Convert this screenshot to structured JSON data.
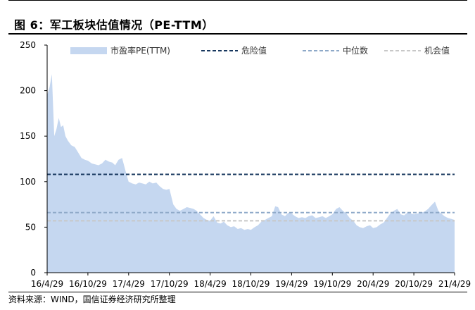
{
  "figure": {
    "title": "图 6：军工板块估值情况（PE-TTM）",
    "source": "资料来源：WIND，国信证券经济研究所整理"
  },
  "chart_data": {
    "type": "area",
    "title": "",
    "xlabel": "",
    "ylabel": "",
    "ylim": [
      0,
      250
    ],
    "y_ticks": [
      0,
      50,
      100,
      150,
      200,
      250
    ],
    "x_tick_labels": [
      "16/4/29",
      "16/10/29",
      "17/4/29",
      "17/10/29",
      "18/4/29",
      "18/10/29",
      "19/4/29",
      "19/10/29",
      "20/4/29",
      "20/10/29",
      "21/4/29"
    ],
    "grid": false,
    "legend_position": "top",
    "series": [
      {
        "name": "市盈率PE(TTM)",
        "kind": "area",
        "color": "#c5d7f0",
        "x": [
          "2016-04-29",
          "2016-05-10",
          "2016-05-20",
          "2016-05-31",
          "2016-06-10",
          "2016-06-20",
          "2016-06-30",
          "2016-07-10",
          "2016-07-20",
          "2016-07-31",
          "2016-08-15",
          "2016-08-31",
          "2016-09-15",
          "2016-09-30",
          "2016-10-15",
          "2016-10-29",
          "2016-11-15",
          "2016-11-30",
          "2016-12-15",
          "2016-12-31",
          "2017-01-15",
          "2017-01-31",
          "2017-02-15",
          "2017-02-28",
          "2017-03-15",
          "2017-03-31",
          "2017-04-15",
          "2017-04-29",
          "2017-05-15",
          "2017-05-31",
          "2017-06-15",
          "2017-06-30",
          "2017-07-15",
          "2017-07-31",
          "2017-08-15",
          "2017-08-31",
          "2017-09-15",
          "2017-09-30",
          "2017-10-15",
          "2017-10-29",
          "2017-11-15",
          "2017-11-30",
          "2017-12-15",
          "2017-12-31",
          "2018-01-15",
          "2018-01-31",
          "2018-02-15",
          "2018-02-28",
          "2018-03-15",
          "2018-03-31",
          "2018-04-15",
          "2018-04-29",
          "2018-05-15",
          "2018-05-31",
          "2018-06-15",
          "2018-06-30",
          "2018-07-15",
          "2018-07-31",
          "2018-08-15",
          "2018-08-31",
          "2018-09-15",
          "2018-09-30",
          "2018-10-15",
          "2018-10-29",
          "2018-11-15",
          "2018-11-30",
          "2018-12-15",
          "2018-12-31",
          "2019-01-15",
          "2019-01-31",
          "2019-02-15",
          "2019-02-28",
          "2019-03-15",
          "2019-03-31",
          "2019-04-15",
          "2019-04-29",
          "2019-05-15",
          "2019-05-31",
          "2019-06-15",
          "2019-06-30",
          "2019-07-15",
          "2019-07-31",
          "2019-08-15",
          "2019-08-31",
          "2019-09-15",
          "2019-09-30",
          "2019-10-15",
          "2019-10-29",
          "2019-11-15",
          "2019-11-30",
          "2019-12-15",
          "2019-12-31",
          "2020-01-15",
          "2020-01-31",
          "2020-02-15",
          "2020-02-29",
          "2020-03-15",
          "2020-03-31",
          "2020-04-15",
          "2020-04-29",
          "2020-05-15",
          "2020-05-31",
          "2020-06-15",
          "2020-06-30",
          "2020-07-15",
          "2020-07-31",
          "2020-08-15",
          "2020-08-31",
          "2020-09-15",
          "2020-09-30",
          "2020-10-15",
          "2020-10-29",
          "2020-11-15",
          "2020-11-30",
          "2020-12-15",
          "2020-12-31",
          "2021-01-15",
          "2021-01-31",
          "2021-02-15",
          "2021-02-28",
          "2021-03-15",
          "2021-03-31",
          "2021-04-15",
          "2021-04-29"
        ],
        "values": [
          195,
          204,
          218,
          150,
          158,
          170,
          160,
          162,
          150,
          145,
          140,
          138,
          132,
          126,
          124,
          123,
          120,
          119,
          118,
          120,
          124,
          122,
          121,
          118,
          124,
          126,
          112,
          100,
          98,
          97,
          99,
          98,
          97,
          100,
          98,
          99,
          95,
          92,
          91,
          92,
          75,
          70,
          68,
          70,
          72,
          71,
          70,
          68,
          64,
          60,
          58,
          57,
          62,
          55,
          54,
          56,
          52,
          50,
          51,
          48,
          49,
          47,
          48,
          47,
          50,
          52,
          56,
          58,
          60,
          62,
          73,
          72,
          64,
          62,
          66,
          65,
          62,
          60,
          61,
          60,
          62,
          63,
          60,
          61,
          62,
          60,
          62,
          64,
          70,
          72,
          68,
          65,
          60,
          57,
          52,
          50,
          49,
          51,
          52,
          49,
          50,
          53,
          55,
          60,
          65,
          68,
          70,
          64,
          63,
          66,
          65,
          64,
          65,
          66,
          67,
          70,
          74,
          78,
          68,
          65,
          62,
          60,
          59,
          58
        ]
      },
      {
        "name": "危险值",
        "kind": "line",
        "style": "dashed",
        "color": "#17375e",
        "value": 108
      },
      {
        "name": "中位数",
        "kind": "line",
        "style": "dashed",
        "color": "#8ea9c8",
        "value": 66
      },
      {
        "name": "机会值",
        "kind": "line",
        "style": "dashed",
        "color": "#c8c8c8",
        "value": 57
      }
    ]
  }
}
